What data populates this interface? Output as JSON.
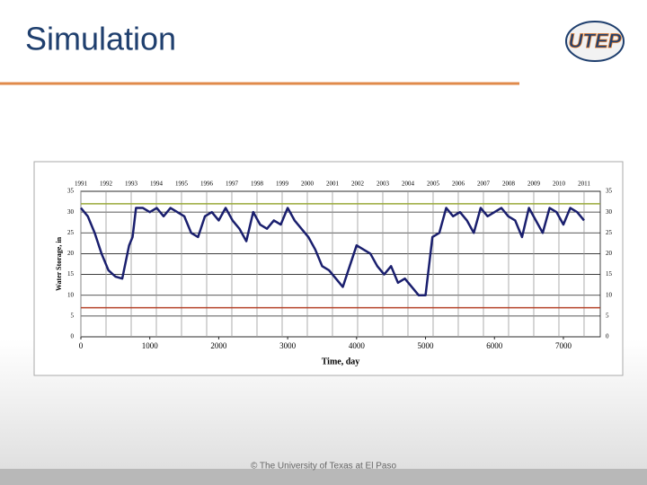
{
  "slide": {
    "title": "Simulation",
    "logo": "UTEP",
    "footer": "© The University of Texas at El Paso"
  },
  "chart_data": {
    "type": "line",
    "xlabel": "Time, day",
    "ylabel": "Water Storage, in",
    "xlim": [
      0,
      7535
    ],
    "xticks": [
      0,
      1000,
      2000,
      3000,
      4000,
      5000,
      6000,
      7000
    ],
    "x2ticks": [
      {
        "value": 0,
        "label": "1991"
      },
      {
        "value": 365,
        "label": "1992"
      },
      {
        "value": 730,
        "label": "1993"
      },
      {
        "value": 1095,
        "label": "1994"
      },
      {
        "value": 1460,
        "label": "1995"
      },
      {
        "value": 1825,
        "label": "1996"
      },
      {
        "value": 2190,
        "label": "1997"
      },
      {
        "value": 2555,
        "label": "1998"
      },
      {
        "value": 2920,
        "label": "1999"
      },
      {
        "value": 3285,
        "label": "2000"
      },
      {
        "value": 3650,
        "label": "2001"
      },
      {
        "value": 4015,
        "label": "2002"
      },
      {
        "value": 4380,
        "label": "2003"
      },
      {
        "value": 4745,
        "label": "2004"
      },
      {
        "value": 5110,
        "label": "2005"
      },
      {
        "value": 5475,
        "label": "2006"
      },
      {
        "value": 5840,
        "label": "2007"
      },
      {
        "value": 6205,
        "label": "2008"
      },
      {
        "value": 6570,
        "label": "2009"
      },
      {
        "value": 6935,
        "label": "2010"
      },
      {
        "value": 7300,
        "label": "2011"
      }
    ],
    "ylim": [
      0,
      35
    ],
    "yticks": [
      0,
      5,
      10,
      15,
      20,
      25,
      30,
      35
    ],
    "grid": true,
    "reference_lines": [
      {
        "value": 32,
        "color": "#9aaa3a"
      },
      {
        "value": 7,
        "color": "#b5432a"
      }
    ],
    "x": [
      0,
      100,
      200,
      300,
      400,
      500,
      600,
      700,
      750,
      800,
      900,
      1000,
      1100,
      1200,
      1300,
      1400,
      1500,
      1600,
      1700,
      1800,
      1900,
      2000,
      2100,
      2200,
      2300,
      2400,
      2500,
      2600,
      2700,
      2800,
      2900,
      3000,
      3100,
      3200,
      3300,
      3400,
      3500,
      3600,
      3700,
      3800,
      3900,
      4000,
      4100,
      4200,
      4300,
      4400,
      4500,
      4600,
      4700,
      4800,
      4900,
      5000,
      5100,
      5200,
      5300,
      5400,
      5500,
      5600,
      5700,
      5800,
      5900,
      6000,
      6100,
      6200,
      6300,
      6400,
      6500,
      6600,
      6700,
      6800,
      6900,
      7000,
      7100,
      7200,
      7300
    ],
    "series": [
      {
        "name": "Water Storage",
        "color": "#1a1f6e",
        "values": [
          31,
          29,
          25,
          20,
          16,
          14.5,
          14,
          22,
          24,
          31,
          31,
          30,
          31,
          29,
          31,
          30,
          29,
          25,
          24,
          29,
          30,
          28,
          31,
          28,
          26,
          23,
          30,
          27,
          26,
          28,
          27,
          31,
          28,
          26,
          24,
          21,
          17,
          16,
          14,
          12,
          17,
          22,
          21,
          20,
          17,
          15,
          17,
          13,
          14,
          12,
          10,
          10,
          24,
          25,
          31,
          29,
          30,
          28,
          25,
          31,
          29,
          30,
          31,
          29,
          28,
          24,
          31,
          28,
          25,
          31,
          30,
          27,
          31,
          30,
          28
        ]
      }
    ]
  }
}
